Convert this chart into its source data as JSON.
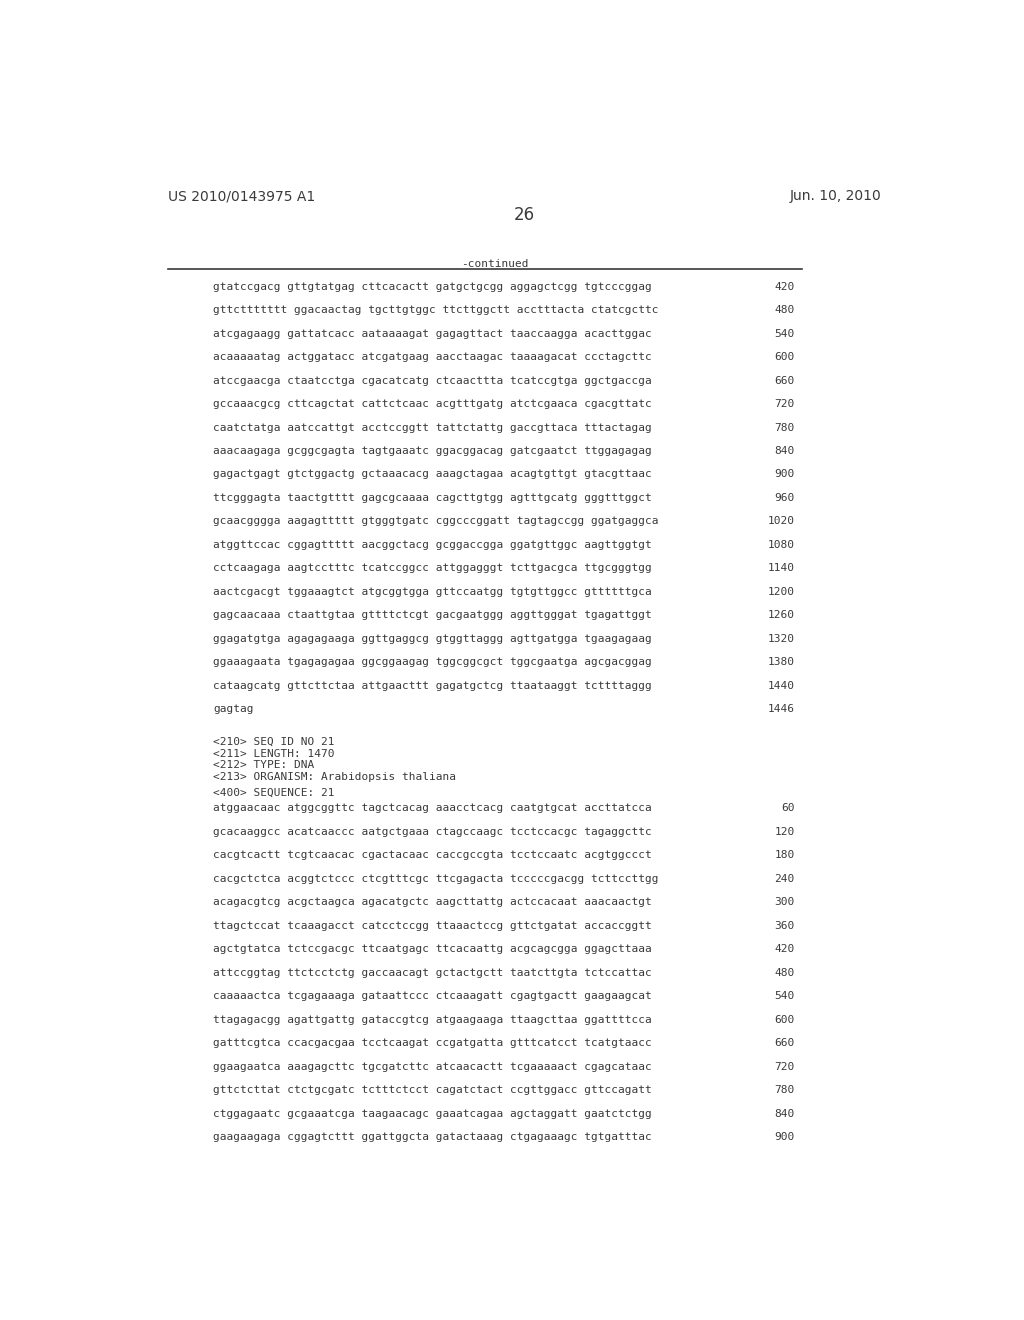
{
  "header_left": "US 2010/0143975 A1",
  "header_right": "Jun. 10, 2010",
  "page_number": "26",
  "continued_label": "-continued",
  "background_color": "#ffffff",
  "text_color": "#3a3a3a",
  "line_color": "#3a3a3a",
  "section1_lines": [
    [
      "gtatccgacg gttgtatgag cttcacactt gatgctgcgg aggagctcgg tgtcccggag",
      "420"
    ],
    [
      "gttcttttttt ggacaactag tgcttgtggc ttcttggctt acctttacta ctatcgcttc",
      "480"
    ],
    [
      "atcgagaagg gattatcacc aataaaagat gagagttact taaccaagga acacttggac",
      "540"
    ],
    [
      "acaaaaatag actggatacc atcgatgaag aacctaagac taaaagacat ccctagcttc",
      "600"
    ],
    [
      "atccgaacga ctaatcctga cgacatcatg ctcaacttta tcatccgtga ggctgaccga",
      "660"
    ],
    [
      "gccaaacgcg cttcagctat cattctcaac acgtttgatg atctcgaaca cgacgttatc",
      "720"
    ],
    [
      "caatctatga aatccattgt acctccggtt tattctattg gaccgttaca tttactagag",
      "780"
    ],
    [
      "aaacaagaga gcggcgagta tagtgaaatc ggacggacag gatcgaatct ttggagagag",
      "840"
    ],
    [
      "gagactgagt gtctggactg gctaaacacg aaagctagaa acagtgttgt gtacgttaac",
      "900"
    ],
    [
      "ttcgggagta taactgtttt gagcgcaaaa cagcttgtgg agtttgcatg gggtttggct",
      "960"
    ],
    [
      "gcaacgggga aagagttttt gtgggtgatc cggcccggatt tagtagccgg ggatgaggca",
      "1020"
    ],
    [
      "atggttccac cggagttttt aacggctacg gcggaccgga ggatgttggc aagttggtgt",
      "1080"
    ],
    [
      "cctcaagaga aagtcctttc tcatccggcc attggagggt tcttgacgca ttgcgggtgg",
      "1140"
    ],
    [
      "aactcgacgt tggaaagtct atgcggtgga gttccaatgg tgtgttggcc gttttttgca",
      "1200"
    ],
    [
      "gagcaacaaa ctaattgtaa gttttctcgt gacgaatggg aggttgggat tgagattggt",
      "1260"
    ],
    [
      "ggagatgtga agagagaaga ggttgaggcg gtggttaggg agttgatgga tgaagagaag",
      "1320"
    ],
    [
      "ggaaagaata tgagagagaa ggcggaagag tggcggcgct tggcgaatga agcgacggag",
      "1380"
    ],
    [
      "cataagcatg gttcttctaa attgaacttt gagatgctcg ttaataaggt tcttttaggg",
      "1440"
    ],
    [
      "gagtag",
      "1446"
    ]
  ],
  "section2_meta": [
    "<210> SEQ ID NO 21",
    "<211> LENGTH: 1470",
    "<212> TYPE: DNA",
    "<213> ORGANISM: Arabidopsis thaliana"
  ],
  "section2_seq_label": "<400> SEQUENCE: 21",
  "section2_lines": [
    [
      "atggaacaac atggcggttc tagctcacag aaacctcacg caatgtgcat accttatcca",
      "60"
    ],
    [
      "gcacaaggcc acatcaaccc aatgctgaaa ctagccaagc tcctccacgc tagaggcttc",
      "120"
    ],
    [
      "cacgtcactt tcgtcaacac cgactacaac caccgccgta tcctccaatc acgtggccct",
      "180"
    ],
    [
      "cacgctctca acggtctccc ctcgtttcgc ttcgagacta tcccccgacgg tcttccttgg",
      "240"
    ],
    [
      "acagacgtcg acgctaagca agacatgctc aagcttattg actccacaat aaacaactgt",
      "300"
    ],
    [
      "ttagctccat tcaaagacct catcctccgg ttaaactccg gttctgatat accaccggtt",
      "360"
    ],
    [
      "agctgtatca tctccgacgc ttcaatgagc ttcacaattg acgcagcgga ggagcttaaa",
      "420"
    ],
    [
      "attccggtag ttctcctctg gaccaacagt gctactgctt taatcttgta tctccattac",
      "480"
    ],
    [
      "caaaaactca tcgagaaaga gataattccc ctcaaagatt cgagtgactt gaagaagcat",
      "540"
    ],
    [
      "ttagagacgg agattgattg gataccgtcg atgaagaaga ttaagcttaa ggattttcca",
      "600"
    ],
    [
      "gatttcgtca ccacgacgaa tcctcaagat ccgatgatta gtttcatcct tcatgtaacc",
      "660"
    ],
    [
      "ggaagaatca aaagagcttc tgcgatcttc atcaacactt tcgaaaaact cgagcataac",
      "720"
    ],
    [
      "gttctcttat ctctgcgatc tctttctcct cagatctact ccgttggacc gttccagatt",
      "780"
    ],
    [
      "ctggagaatc gcgaaatcga taagaacagc gaaatcagaa agctaggatt gaatctctgg",
      "840"
    ],
    [
      "gaagaagaga cggagtcttt ggattggcta gatactaaag ctgagaaagc tgtgatttac",
      "900"
    ]
  ]
}
